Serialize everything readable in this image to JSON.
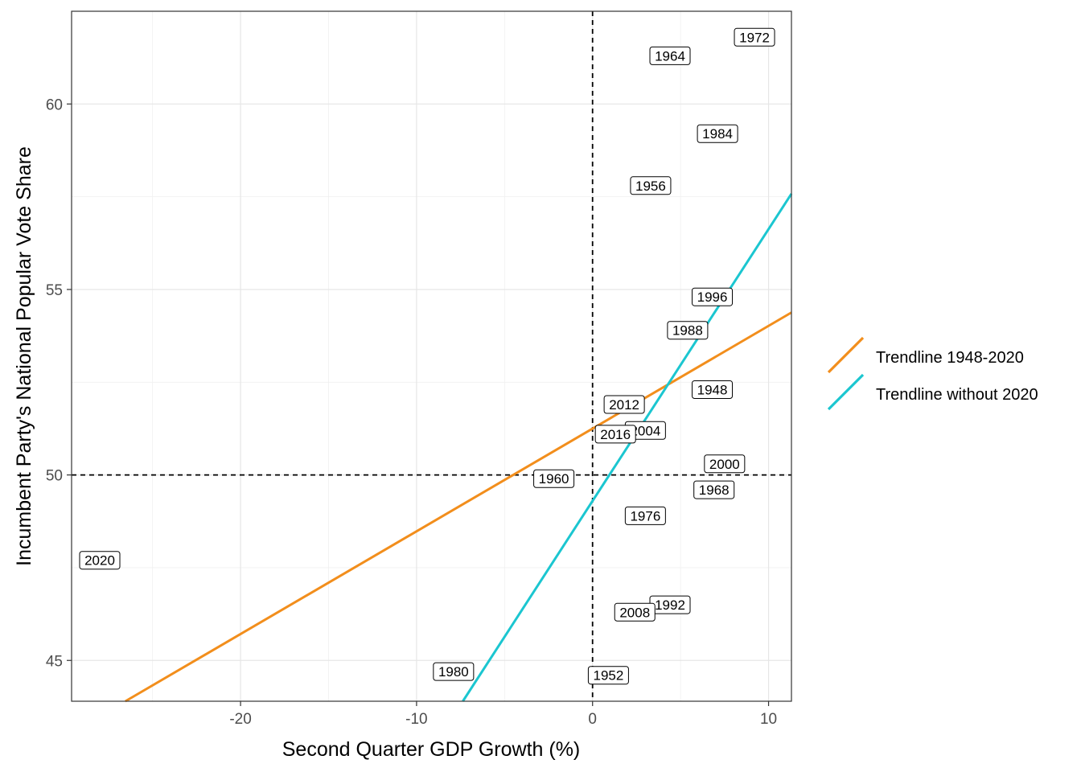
{
  "chart_data": {
    "type": "scatter",
    "xlabel": "Second Quarter GDP Growth (%)",
    "ylabel": "Incumbent Party's National Popular Vote Share",
    "xlim": [
      -29.6,
      11.3
    ],
    "ylim": [
      43.9,
      62.5
    ],
    "x_ticks": [
      -20,
      -10,
      0,
      10
    ],
    "y_ticks": [
      45,
      50,
      55,
      60
    ],
    "grid": true,
    "legend_position": "right",
    "reference_lines": {
      "x": 0,
      "y": 50
    },
    "points": [
      {
        "label": "1948",
        "x": 6.8,
        "y": 52.3
      },
      {
        "label": "1952",
        "x": 0.9,
        "y": 44.6
      },
      {
        "label": "1956",
        "x": 3.3,
        "y": 57.8
      },
      {
        "label": "1960",
        "x": -2.2,
        "y": 49.9
      },
      {
        "label": "1964",
        "x": 4.4,
        "y": 61.3
      },
      {
        "label": "1968",
        "x": 6.9,
        "y": 49.6
      },
      {
        "label": "1972",
        "x": 9.2,
        "y": 61.8
      },
      {
        "label": "1976",
        "x": 3.0,
        "y": 48.9
      },
      {
        "label": "1980",
        "x": -7.9,
        "y": 44.7
      },
      {
        "label": "1984",
        "x": 7.1,
        "y": 59.2
      },
      {
        "label": "1988",
        "x": 5.4,
        "y": 53.9
      },
      {
        "label": "1992",
        "x": 4.4,
        "y": 46.5
      },
      {
        "label": "1996",
        "x": 6.8,
        "y": 54.8
      },
      {
        "label": "2000",
        "x": 7.5,
        "y": 50.3
      },
      {
        "label": "2004",
        "x": 3.0,
        "y": 51.2
      },
      {
        "label": "2008",
        "x": 2.4,
        "y": 46.3
      },
      {
        "label": "2012",
        "x": 1.8,
        "y": 51.9
      },
      {
        "label": "2016",
        "x": 1.3,
        "y": 51.1
      },
      {
        "label": "2020",
        "x": -28.0,
        "y": 47.7
      }
    ],
    "series": [
      {
        "name": "Trendline 1948-2020",
        "color": "#f28e1c",
        "intercept": 51.25,
        "slope": 0.2769
      },
      {
        "name": "Trendline without 2020",
        "color": "#1bc6d0",
        "intercept": 49.3,
        "slope": 0.7327
      }
    ]
  }
}
